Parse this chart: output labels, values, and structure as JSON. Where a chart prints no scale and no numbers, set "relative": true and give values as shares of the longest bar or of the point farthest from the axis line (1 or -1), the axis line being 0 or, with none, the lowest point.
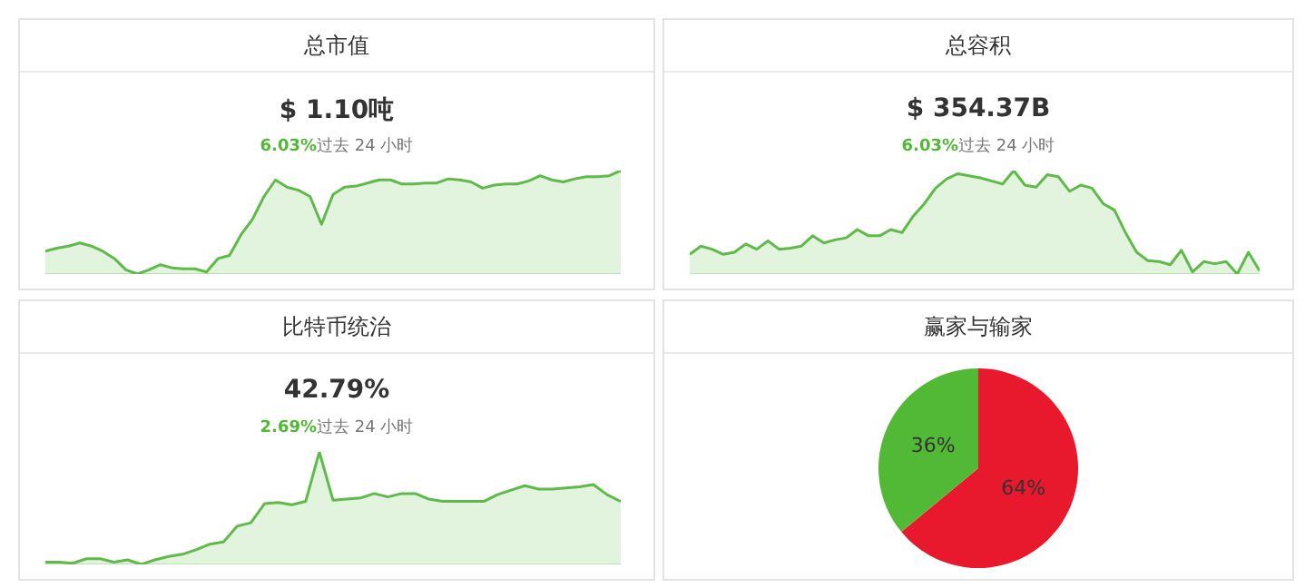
{
  "chart_data": [
    {
      "type": "area",
      "title": "总市值",
      "subtitle": "$ 1.10吨",
      "annotations": [
        "6.03%",
        "过去 24 小时"
      ],
      "relative": true,
      "categories": [
        null,
        null,
        null,
        null,
        null,
        null,
        null,
        null,
        null,
        null,
        null,
        null,
        null,
        null,
        null,
        null,
        null,
        null,
        null,
        null,
        null,
        null,
        null,
        null,
        null,
        null,
        null,
        null,
        null,
        null,
        null,
        null,
        null,
        null,
        null,
        null,
        null,
        null,
        null,
        null,
        null,
        null,
        null,
        null,
        null,
        null,
        null,
        null,
        null,
        null,
        null
      ],
      "series": [
        {
          "color": "#5fba4a",
          "values": [
            0.22,
            0.25,
            0.27,
            0.3,
            0.27,
            0.22,
            0.15,
            0.04,
            0,
            0.04,
            0.09,
            0.06,
            0.05,
            0.05,
            0.02,
            0.15,
            0.18,
            0.38,
            0.53,
            0.75,
            0.91,
            0.84,
            0.81,
            0.75,
            0.48,
            0.77,
            0.84,
            0.85,
            0.88,
            0.91,
            0.91,
            0.87,
            0.87,
            0.88,
            0.88,
            0.92,
            0.91,
            0.89,
            0.83,
            0.86,
            0.87,
            0.87,
            0.9,
            0.95,
            0.91,
            0.89,
            0.92,
            0.94,
            0.94,
            0.95,
            1
          ]
        }
      ]
    },
    {
      "type": "area",
      "title": "总容积",
      "subtitle": "$ 354.37B",
      "annotations": [
        "6.03%",
        "过去 24 小时"
      ],
      "relative": true,
      "categories": [
        null,
        null,
        null,
        null,
        null,
        null,
        null,
        null,
        null,
        null,
        null,
        null,
        null,
        null,
        null,
        null,
        null,
        null,
        null,
        null,
        null,
        null,
        null,
        null,
        null,
        null,
        null,
        null,
        null,
        null,
        null,
        null,
        null,
        null,
        null,
        null,
        null,
        null,
        null,
        null,
        null,
        null,
        null,
        null,
        null,
        null,
        null,
        null,
        null,
        null,
        null,
        null
      ],
      "series": [
        {
          "color": "#5fba4a",
          "values": [
            0.19,
            0.27,
            0.24,
            0.19,
            0.21,
            0.29,
            0.24,
            0.32,
            0.24,
            0.25,
            0.27,
            0.37,
            0.3,
            0.33,
            0.35,
            0.43,
            0.37,
            0.37,
            0.43,
            0.4,
            0.56,
            0.68,
            0.83,
            0.92,
            0.97,
            0.95,
            0.93,
            0.9,
            0.87,
            1,
            0.86,
            0.84,
            0.96,
            0.94,
            0.8,
            0.86,
            0.83,
            0.68,
            0.62,
            0.4,
            0.21,
            0.13,
            0.12,
            0.09,
            0.23,
            0.02,
            0.12,
            0.1,
            0.12,
            0,
            0.21,
            0.03
          ]
        }
      ]
    },
    {
      "type": "area",
      "title": "比特币统治",
      "subtitle": "42.79%",
      "annotations": [
        "2.69%",
        "过去 24 小时"
      ],
      "relative": true,
      "categories": [
        null,
        null,
        null,
        null,
        null,
        null,
        null,
        null,
        null,
        null,
        null,
        null,
        null,
        null,
        null,
        null,
        null,
        null,
        null,
        null,
        null,
        null,
        null,
        null,
        null,
        null,
        null,
        null,
        null,
        null,
        null,
        null,
        null,
        null,
        null,
        null,
        null,
        null,
        null,
        null,
        null,
        null,
        null
      ],
      "series": [
        {
          "color": "#5fba4a",
          "values": [
            0.02,
            0.02,
            0.01,
            0.05,
            0.05,
            0.02,
            0.04,
            0,
            0.04,
            0.07,
            0.09,
            0.13,
            0.18,
            0.2,
            0.34,
            0.37,
            0.54,
            0.55,
            0.53,
            0.56,
            1,
            0.57,
            0.58,
            0.59,
            0.63,
            0.6,
            0.63,
            0.63,
            0.58,
            0.56,
            0.56,
            0.56,
            0.56,
            0.62,
            0.66,
            0.7,
            0.67,
            0.67,
            0.68,
            0.69,
            0.71,
            0.62,
            0.56
          ]
        }
      ]
    },
    {
      "type": "pie",
      "title": "赢家与输家",
      "categories": [
        null,
        null
      ],
      "values": [
        64,
        36
      ],
      "colors": [
        "#e8192c",
        "#52b936"
      ],
      "value_labels": [
        "64%",
        "36%"
      ]
    }
  ]
}
